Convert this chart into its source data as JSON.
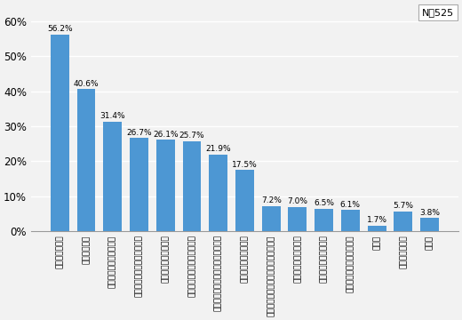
{
  "categories": [
    "元本保証がない",
    "手数料が高い",
    "運用実績がわかりにくい",
    "公社債に比べて安心できない",
    "種類が多く選択に迷う",
    "面白さに欠ける株式に比べて",
    "講入後の運用に関する情報が少ない",
    "利回りがもの足りない",
    "店舗がない近くに証券会社・銀行等の",
    "クローズド期間がある",
    "なんとなくなじめない",
    "購入手続等がわずらわしい",
    "その他",
    "よくわからない",
    "無回答"
  ],
  "values": [
    56.2,
    40.6,
    31.4,
    26.7,
    26.1,
    25.7,
    21.9,
    17.5,
    7.2,
    7.0,
    6.5,
    6.1,
    1.7,
    5.7,
    3.8
  ],
  "bar_color": "#4d97d3",
  "ylim": [
    0,
    65
  ],
  "yticks": [
    0,
    10,
    20,
    30,
    40,
    50,
    60
  ],
  "n_label": "N＝525",
  "value_fontsize": 6.5,
  "xlabel_fontsize": 6.5,
  "ytick_fontsize": 8.5,
  "background_color": "#f2f2f2"
}
